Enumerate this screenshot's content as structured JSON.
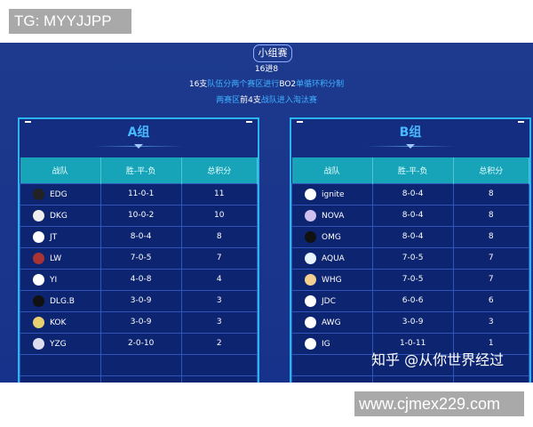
{
  "overlay_label": "TG: MYYJJPP",
  "watermark": "www.cjmex229.com",
  "zhihu": "知乎 @从你世界经过",
  "stage": "小组赛",
  "format": "16进8",
  "desc1": [
    {
      "t": "16支",
      "cyan": false
    },
    {
      "t": "队伍分两个赛区进行",
      "cyan": true
    },
    {
      "t": "BO2",
      "cyan": false
    },
    {
      "t": "单循环积分制",
      "cyan": true
    }
  ],
  "desc2": [
    {
      "t": "两赛区",
      "cyan": true
    },
    {
      "t": "前4支",
      "cyan": false
    },
    {
      "t": "战队进入淘汰赛",
      "cyan": true
    }
  ],
  "columns": [
    "战队",
    "胜-平-负",
    "总积分"
  ],
  "groups": [
    {
      "name": "A组",
      "rows": [
        [
          "EDG",
          "11-0-1",
          "11"
        ],
        [
          "DKG",
          "10-0-2",
          "10"
        ],
        [
          "JT",
          "8-0-4",
          "8"
        ],
        [
          "LW",
          "7-0-5",
          "7"
        ],
        [
          "YI",
          "4-0-8",
          "4"
        ],
        [
          "DLG.B",
          "3-0-9",
          "3"
        ],
        [
          "KOK",
          "3-0-9",
          "3"
        ],
        [
          "YZG",
          "2-0-10",
          "2"
        ],
        [
          "",
          "",
          ""
        ],
        [
          "",
          "",
          ""
        ]
      ]
    },
    {
      "name": "B组",
      "rows": [
        [
          "ignite",
          "8-0-4",
          "8"
        ],
        [
          "NOVA",
          "8-0-4",
          "8"
        ],
        [
          "OMG",
          "8-0-4",
          "8"
        ],
        [
          "AQUA",
          "7-0-5",
          "7"
        ],
        [
          "WHG",
          "7-0-5",
          "7"
        ],
        [
          "JDC",
          "6-0-6",
          "6"
        ],
        [
          "AWG",
          "3-0-9",
          "3"
        ],
        [
          "IG",
          "1-0-11",
          "1"
        ],
        [
          "",
          "",
          ""
        ],
        [
          "",
          "",
          ""
        ]
      ]
    }
  ],
  "colors": {
    "bg": "#1d3a8e",
    "header": "#18a4b8",
    "accent": "#3fb2ff"
  }
}
